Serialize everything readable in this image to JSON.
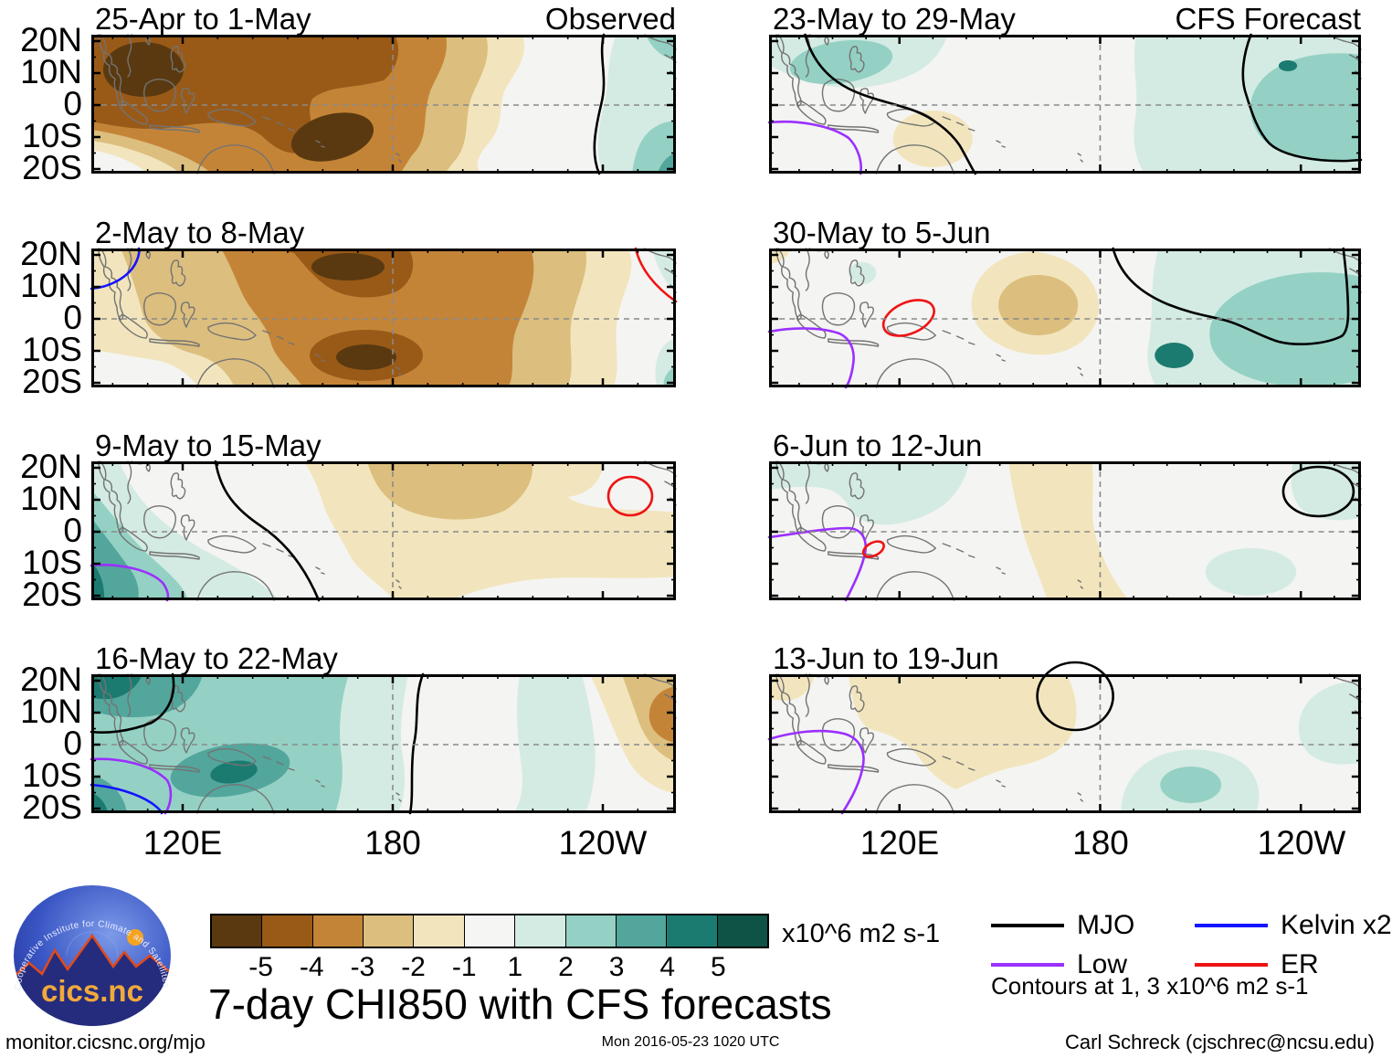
{
  "title": "7-day CHI850 with CFS forecasts",
  "panels": [
    {
      "id": "L1",
      "title": "25-Apr to 1-May",
      "corner_label": "Observed"
    },
    {
      "id": "L2",
      "title": "2-May to 8-May",
      "corner_label": ""
    },
    {
      "id": "L3",
      "title": "9-May to 15-May",
      "corner_label": ""
    },
    {
      "id": "L4",
      "title": "16-May to 22-May",
      "corner_label": ""
    },
    {
      "id": "R1",
      "title": "23-May to 29-May",
      "corner_label": "CFS Forecast"
    },
    {
      "id": "R2",
      "title": "30-May to 5-Jun",
      "corner_label": ""
    },
    {
      "id": "R3",
      "title": "6-Jun to 12-Jun",
      "corner_label": ""
    },
    {
      "id": "R4",
      "title": "13-Jun to 19-Jun",
      "corner_label": ""
    }
  ],
  "axes": {
    "y_labels": [
      "20N",
      "10N",
      "0",
      "10S",
      "20S"
    ],
    "x_labels": [
      "120E",
      "180",
      "120W"
    ]
  },
  "colorbar": {
    "colors": [
      "#5a3910",
      "#995a18",
      "#c48437",
      "#dcbe7e",
      "#f2e5bd",
      "#f5f5f3",
      "#d4ebe3",
      "#94d1c4",
      "#53a69c",
      "#1c7b71",
      "#0f5346"
    ],
    "labels": [
      "-5",
      "-4",
      "-3",
      "-2",
      "-1",
      "1",
      "2",
      "3",
      "4",
      "5"
    ],
    "unit": "x10^6 m2 s-1"
  },
  "legend": {
    "items": [
      {
        "label": "MJO",
        "color": "#000000"
      },
      {
        "label": "Low",
        "color": "#9b30ff"
      },
      {
        "label": "Kelvin x2",
        "color": "#1414ff"
      },
      {
        "label": "ER",
        "color": "#ee1414"
      }
    ],
    "note": "Contours at 1, 3 x10^6 m2 s-1"
  },
  "logo": {
    "ring_text": "Cooperative Institute for Climate and Satellites",
    "name": "cics.nc"
  },
  "footer": {
    "left": "monitor.cicsnc.org/mjo",
    "center": "Mon 2016-05-23 1020 UTC",
    "right": "Carl Schreck (cjschrec@ncsu.edu)"
  },
  "chart_data": {
    "type": "heatmap",
    "field": "CHI850 velocity potential anomaly, 7-day mean",
    "units": "x10^6 m2 s-1",
    "color_levels": [
      -5,
      -4,
      -3,
      -2,
      -1,
      1,
      2,
      3,
      4,
      5
    ],
    "lon_ticks": [
      "120E",
      "180",
      "120W"
    ],
    "lat_ticks": [
      "20N",
      "10N",
      "0",
      "10S",
      "20S"
    ],
    "panels": [
      {
        "period": "25-Apr to 1-May",
        "kind": "Observed",
        "negative_anomaly": {
          "location": "Maritime Continent / west Pacific 95E-170E",
          "peak": -5
        },
        "positive_anomaly": {
          "location": "far eastern Pacific east of 110W",
          "peak": 3
        },
        "contours": [
          "MJO"
        ]
      },
      {
        "period": "2-May to 8-May",
        "kind": "Observed",
        "negative_anomaly": {
          "location": "west-central Pacific 140E-170W",
          "peak": -5
        },
        "positive_anomaly": {
          "location": "far eastern Pacific edge",
          "peak": 2
        },
        "contours": [
          "Kelvin x2",
          "ER"
        ]
      },
      {
        "period": "9-May to 15-May",
        "kind": "Observed",
        "negative_anomaly": {
          "location": "central Pacific near the dateline",
          "peak": -3
        },
        "positive_anomaly": {
          "location": "far west near 95E-115E",
          "peak": 4
        },
        "contours": [
          "MJO",
          "Low",
          "ER"
        ]
      },
      {
        "period": "16-May to 22-May",
        "kind": "Observed",
        "negative_anomaly": {
          "location": "eastern Pacific 130W-100W",
          "peak": -3
        },
        "positive_anomaly": {
          "location": "Maritime Continent / west Pacific",
          "peak": 4
        },
        "contours": [
          "MJO",
          "Low",
          "Kelvin x2"
        ]
      },
      {
        "period": "23-May to 29-May",
        "kind": "CFS Forecast",
        "negative_anomaly": {
          "location": "small area near New Guinea",
          "peak": -1
        },
        "positive_anomaly": {
          "location": "central-east Pacific near 150W",
          "peak": 4
        },
        "contours": [
          "MJO",
          "Low"
        ]
      },
      {
        "period": "30-May to 5-Jun",
        "kind": "CFS Forecast",
        "negative_anomaly": {
          "location": "west Pacific near 160E",
          "peak": -2
        },
        "positive_anomaly": {
          "location": "eastern Pacific 170W-110W",
          "peak": 4
        },
        "contours": [
          "MJO",
          "Low",
          "ER"
        ]
      },
      {
        "period": "6-Jun to 12-Jun",
        "kind": "CFS Forecast",
        "negative_anomaly": {
          "location": "band along the dateline",
          "peak": -1
        },
        "positive_anomaly": {
          "location": "Southeast Asia / Philippines",
          "peak": 1
        },
        "contours": [
          "MJO",
          "Low",
          "ER"
        ]
      },
      {
        "period": "13-Jun to 19-Jun",
        "kind": "CFS Forecast",
        "negative_anomaly": {
          "location": "west Pacific 130E-175E",
          "peak": -1
        },
        "positive_anomaly": {
          "location": "south-central Pacific near 155W",
          "peak": 2
        },
        "contours": [
          "MJO",
          "Low"
        ]
      }
    ]
  }
}
